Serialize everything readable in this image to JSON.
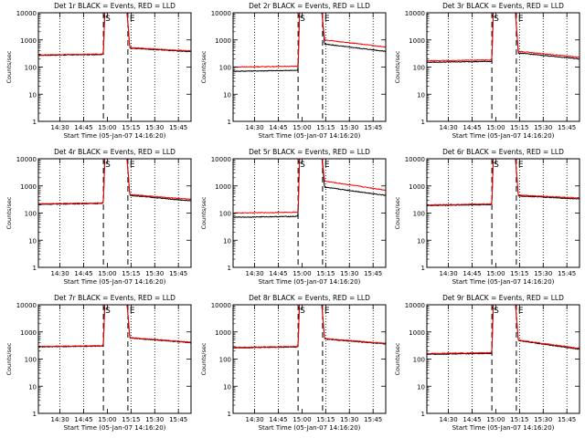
{
  "figure": {
    "x_ticks": [
      "14:30",
      "14:45",
      "15:00",
      "15:15",
      "15:30",
      "15:45"
    ],
    "y_ticks": [
      "1",
      "10",
      "100",
      "1000",
      "10000"
    ],
    "x_axis_label": "Start Time (05-Jan-07 14:16:20)",
    "y_axis_label": "Counts/sec",
    "marker_s": "S",
    "marker_e": "E",
    "colors": {
      "events": "#000000",
      "lld": "#ff0000",
      "background": "#ffffff"
    }
  },
  "chart_data": [
    {
      "type": "line",
      "title": "Det 1r BLACK = Events, RED = LLD",
      "xlabel": "Start Time (05-Jan-07 14:16:20)",
      "ylabel": "Counts/sec",
      "yscale": "log",
      "ylim": [
        1,
        10000
      ],
      "xlim": [
        "14:16:20",
        "15:53:00"
      ],
      "s_time": "14:57:30",
      "e_time": "15:13:00",
      "marker_times": [
        "14:57:30",
        "15:13:00"
      ],
      "grid_times": [
        "14:30",
        "14:45",
        "15:15",
        "15:30",
        "15:45"
      ],
      "series": [
        {
          "name": "Events",
          "color": "#000000",
          "pre_flare": 270,
          "post_flare": 500,
          "end": 370
        },
        {
          "name": "LLD",
          "color": "#ff0000",
          "pre_flare": 280,
          "post_flare": 520,
          "end": 390
        }
      ]
    },
    {
      "type": "line",
      "title": "Det 2r BLACK = Events, RED = LLD",
      "xlabel": "Start Time (05-Jan-07 14:16:20)",
      "ylabel": "Counts/sec",
      "yscale": "log",
      "ylim": [
        1,
        10000
      ],
      "xlim": [
        "14:16:20",
        "15:53:00"
      ],
      "s_time": "14:57:30",
      "e_time": "15:13:00",
      "marker_times": [
        "14:57:30",
        "15:13:00"
      ],
      "grid_times": [
        "14:30",
        "14:45",
        "15:15",
        "15:30",
        "15:45"
      ],
      "series": [
        {
          "name": "Events",
          "color": "#000000",
          "pre_flare": 70,
          "post_flare": 700,
          "end": 380
        },
        {
          "name": "LLD",
          "color": "#ff0000",
          "pre_flare": 100,
          "post_flare": 1000,
          "end": 550
        }
      ]
    },
    {
      "type": "line",
      "title": "Det 3r BLACK = Events, RED = LLD",
      "xlabel": "Start Time (05-Jan-07 14:16:20)",
      "ylabel": "Counts/sec",
      "yscale": "log",
      "ylim": [
        1,
        10000
      ],
      "xlim": [
        "14:16:20",
        "15:53:00"
      ],
      "s_time": "14:57:30",
      "e_time": "15:13:00",
      "marker_times": [
        "14:57:30",
        "15:13:00"
      ],
      "grid_times": [
        "14:30",
        "14:45",
        "15:15",
        "15:30",
        "15:45"
      ],
      "series": [
        {
          "name": "Events",
          "color": "#000000",
          "pre_flare": 150,
          "post_flare": 330,
          "end": 200
        },
        {
          "name": "LLD",
          "color": "#ff0000",
          "pre_flare": 170,
          "post_flare": 380,
          "end": 230
        }
      ]
    },
    {
      "type": "line",
      "title": "Det 4r BLACK = Events, RED = LLD",
      "xlabel": "Start Time (05-Jan-07 14:16:20)",
      "ylabel": "Counts/sec",
      "yscale": "log",
      "ylim": [
        1,
        10000
      ],
      "xlim": [
        "14:16:20",
        "15:53:00"
      ],
      "s_time": "14:57:30",
      "e_time": "15:13:00",
      "marker_times": [
        "14:57:30",
        "15:13:00"
      ],
      "grid_times": [
        "14:30",
        "14:45",
        "15:15",
        "15:30",
        "15:45"
      ],
      "series": [
        {
          "name": "Events",
          "color": "#000000",
          "pre_flare": 210,
          "post_flare": 450,
          "end": 280
        },
        {
          "name": "LLD",
          "color": "#ff0000",
          "pre_flare": 220,
          "post_flare": 480,
          "end": 320
        }
      ]
    },
    {
      "type": "line",
      "title": "Det 5r BLACK = Events, RED = LLD",
      "xlabel": "Start Time (05-Jan-07 14:16:20)",
      "ylabel": "Counts/sec",
      "yscale": "log",
      "ylim": [
        1,
        10000
      ],
      "xlim": [
        "14:16:20",
        "15:53:00"
      ],
      "s_time": "14:57:30",
      "e_time": "15:13:00",
      "marker_times": [
        "14:57:30",
        "15:13:00"
      ],
      "grid_times": [
        "14:30",
        "14:45",
        "15:15",
        "15:30",
        "15:45"
      ],
      "series": [
        {
          "name": "Events",
          "color": "#000000",
          "pre_flare": 70,
          "post_flare": 900,
          "end": 450
        },
        {
          "name": "LLD",
          "color": "#ff0000",
          "pre_flare": 100,
          "post_flare": 1500,
          "end": 700
        }
      ]
    },
    {
      "type": "line",
      "title": "Det 6r BLACK = Events, RED = LLD",
      "xlabel": "Start Time (05-Jan-07 14:16:20)",
      "ylabel": "Counts/sec",
      "yscale": "log",
      "ylim": [
        1,
        10000
      ],
      "xlim": [
        "14:16:20",
        "15:53:00"
      ],
      "s_time": "14:57:30",
      "e_time": "15:13:00",
      "marker_times": [
        "14:57:30",
        "15:13:00"
      ],
      "grid_times": [
        "14:30",
        "14:45",
        "15:15",
        "15:30",
        "15:45"
      ],
      "series": [
        {
          "name": "Events",
          "color": "#000000",
          "pre_flare": 190,
          "post_flare": 430,
          "end": 330
        },
        {
          "name": "LLD",
          "color": "#ff0000",
          "pre_flare": 200,
          "post_flare": 460,
          "end": 360
        }
      ]
    },
    {
      "type": "line",
      "title": "Det 7r BLACK = Events, RED = LLD",
      "xlabel": "Start Time (05-Jan-07 14:16:20)",
      "ylabel": "Counts/sec",
      "yscale": "log",
      "ylim": [
        1,
        10000
      ],
      "xlim": [
        "14:16:20",
        "15:53:00"
      ],
      "s_time": "14:57:30",
      "e_time": "15:13:00",
      "marker_times": [
        "14:57:30",
        "15:13:00"
      ],
      "grid_times": [
        "14:30",
        "14:45",
        "15:15",
        "15:30",
        "15:45"
      ],
      "series": [
        {
          "name": "Events",
          "color": "#000000",
          "pre_flare": 280,
          "post_flare": 600,
          "end": 400
        },
        {
          "name": "LLD",
          "color": "#ff0000",
          "pre_flare": 290,
          "post_flare": 620,
          "end": 420
        }
      ]
    },
    {
      "type": "line",
      "title": "Det 8r BLACK = Events, RED = LLD",
      "xlabel": "Start Time (05-Jan-07 14:16:20)",
      "ylabel": "Counts/sec",
      "yscale": "log",
      "ylim": [
        1,
        10000
      ],
      "xlim": [
        "14:16:20",
        "15:53:00"
      ],
      "s_time": "14:57:30",
      "e_time": "15:13:00",
      "marker_times": [
        "14:57:30",
        "15:13:00"
      ],
      "grid_times": [
        "14:30",
        "14:45",
        "15:15",
        "15:30",
        "15:45"
      ],
      "series": [
        {
          "name": "Events",
          "color": "#000000",
          "pre_flare": 260,
          "post_flare": 550,
          "end": 360
        },
        {
          "name": "LLD",
          "color": "#ff0000",
          "pre_flare": 270,
          "post_flare": 570,
          "end": 380
        }
      ]
    },
    {
      "type": "line",
      "title": "Det 9r BLACK = Events, RED = LLD",
      "xlabel": "Start Time (05-Jan-07 14:16:20)",
      "ylabel": "Counts/sec",
      "yscale": "log",
      "ylim": [
        1,
        10000
      ],
      "xlim": [
        "14:16:20",
        "15:53:00"
      ],
      "s_time": "14:57:30",
      "e_time": "15:13:00",
      "marker_times": [
        "14:57:30",
        "15:13:00"
      ],
      "grid_times": [
        "14:30",
        "14:45",
        "15:15",
        "15:30",
        "15:45"
      ],
      "series": [
        {
          "name": "Events",
          "color": "#000000",
          "pre_flare": 150,
          "post_flare": 480,
          "end": 230
        },
        {
          "name": "LLD",
          "color": "#ff0000",
          "pre_flare": 160,
          "post_flare": 500,
          "end": 250
        }
      ]
    }
  ]
}
